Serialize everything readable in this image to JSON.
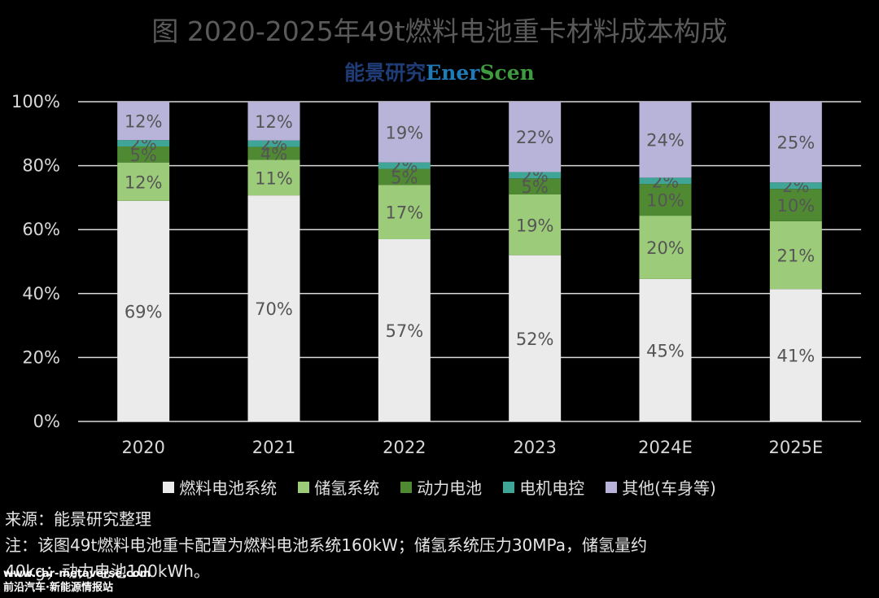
{
  "header": {
    "title": "图  2020-2025年49t燃料电池重卡材料成本构成",
    "logo_cn": "能景研究",
    "logo_en_1": "Ener",
    "logo_en_2": "Scen"
  },
  "chart_data": {
    "type": "bar",
    "stacked": true,
    "percent": true,
    "categories": [
      "2020",
      "2021",
      "2022",
      "2023",
      "2024E",
      "2025E"
    ],
    "series": [
      {
        "name": "燃料电池系统",
        "color": "#ebebeb",
        "values": [
          69,
          70,
          57,
          52,
          45,
          41
        ]
      },
      {
        "name": "储氢系统",
        "color": "#9ccc79",
        "values": [
          12,
          11,
          17,
          19,
          20,
          21
        ]
      },
      {
        "name": "动力电池",
        "color": "#4f8a32",
        "values": [
          5,
          4,
          5,
          5,
          10,
          10
        ]
      },
      {
        "name": "电机电控",
        "color": "#3fa697",
        "values": [
          2,
          2,
          2,
          2,
          2,
          2
        ]
      },
      {
        "name": "其他(车身等)",
        "color": "#b7b3d9",
        "values": [
          12,
          12,
          19,
          22,
          24,
          25
        ]
      }
    ],
    "yticks": [
      "0%",
      "20%",
      "40%",
      "60%",
      "80%",
      "100%"
    ],
    "ylim": [
      0,
      100
    ],
    "grid": true,
    "legend": "bottom"
  },
  "notes": {
    "source": "来源：能景研究整理",
    "note_line1": "注：该图49t燃料电池重卡配置为燃料电池系统160kW；储氢系统压力30MPa，储氢量约",
    "note_line2": "40kg；动力电池100kWh。"
  },
  "watermark": {
    "line1": "www.car-metaverse.com",
    "line2": "前沿汽车·新能源情报站"
  }
}
